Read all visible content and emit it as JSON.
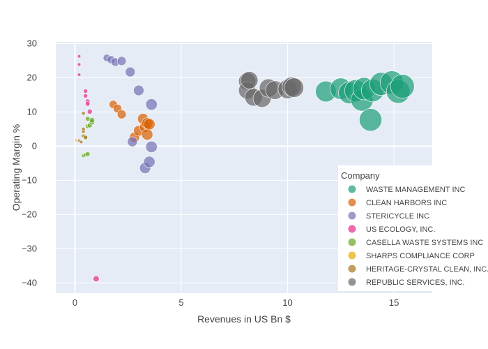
{
  "chart_data": {
    "type": "scatter",
    "title": "",
    "xlabel": "Revenues in US Bn $",
    "ylabel": "Operating Margin %",
    "xlim": [
      -0.9,
      16.8
    ],
    "ylim": [
      -43,
      30.5
    ],
    "xticks": [
      0,
      5,
      10,
      15
    ],
    "yticks": [
      -40,
      -30,
      -20,
      -10,
      0,
      10,
      20,
      30
    ],
    "grid": true,
    "legend_title": "Company",
    "legend_position": "bottom-right",
    "series": [
      {
        "name": "WASTE MANAGEMENT INC",
        "color": "#1b9e77",
        "points": [
          {
            "x": 11.8,
            "y": 16.0,
            "s": 11.8
          },
          {
            "x": 12.5,
            "y": 16.8,
            "s": 12.5
          },
          {
            "x": 12.9,
            "y": 15.6,
            "s": 12.9
          },
          {
            "x": 13.2,
            "y": 16.2,
            "s": 13.2
          },
          {
            "x": 13.5,
            "y": 13.5,
            "s": 13.5
          },
          {
            "x": 13.6,
            "y": 16.8,
            "s": 13.6
          },
          {
            "x": 13.9,
            "y": 7.7,
            "s": 13.9
          },
          {
            "x": 14.0,
            "y": 16.3,
            "s": 14.0
          },
          {
            "x": 14.4,
            "y": 18.2,
            "s": 14.4
          },
          {
            "x": 14.9,
            "y": 18.6,
            "s": 14.9
          },
          {
            "x": 15.2,
            "y": 16.0,
            "s": 15.2
          },
          {
            "x": 15.4,
            "y": 17.5,
            "s": 15.4
          }
        ]
      },
      {
        "name": "CLEAN HARBORS INC",
        "color": "#d95f02",
        "points": [
          {
            "x": 1.8,
            "y": 12.2,
            "s": 1.8
          },
          {
            "x": 2.0,
            "y": 11.0,
            "s": 2.0
          },
          {
            "x": 2.2,
            "y": 9.3,
            "s": 2.2
          },
          {
            "x": 2.8,
            "y": 2.6,
            "s": 2.8
          },
          {
            "x": 3.0,
            "y": 4.5,
            "s": 3.0
          },
          {
            "x": 3.2,
            "y": 8.0,
            "s": 3.2
          },
          {
            "x": 3.3,
            "y": 5.6,
            "s": 3.3
          },
          {
            "x": 3.4,
            "y": 3.4,
            "s": 3.4
          },
          {
            "x": 3.4,
            "y": 6.7,
            "s": 3.4
          },
          {
            "x": 3.5,
            "y": 6.4,
            "s": 3.5
          }
        ]
      },
      {
        "name": "STERICYCLE INC",
        "color": "#7570b3",
        "points": [
          {
            "x": 1.5,
            "y": 25.8,
            "s": 1.5
          },
          {
            "x": 1.7,
            "y": 25.3,
            "s": 1.7
          },
          {
            "x": 1.9,
            "y": 24.6,
            "s": 1.9
          },
          {
            "x": 2.2,
            "y": 24.9,
            "s": 2.2
          },
          {
            "x": 2.6,
            "y": 21.7,
            "s": 2.6
          },
          {
            "x": 2.7,
            "y": 1.3,
            "s": 2.7
          },
          {
            "x": 3.0,
            "y": 16.3,
            "s": 3.0
          },
          {
            "x": 3.3,
            "y": -6.4,
            "s": 3.3
          },
          {
            "x": 3.5,
            "y": -4.6,
            "s": 3.5
          },
          {
            "x": 3.6,
            "y": 12.2,
            "s": 3.6
          },
          {
            "x": 3.6,
            "y": -0.2,
            "s": 3.6
          }
        ]
      },
      {
        "name": "US ECOLOGY, INC.",
        "color": "#e7298a",
        "points": [
          {
            "x": 0.2,
            "y": 26.3,
            "s": 0.2
          },
          {
            "x": 0.2,
            "y": 23.9,
            "s": 0.2
          },
          {
            "x": 0.2,
            "y": 20.9,
            "s": 0.2
          },
          {
            "x": 0.5,
            "y": 16.1,
            "s": 0.5
          },
          {
            "x": 0.5,
            "y": 14.7,
            "s": 0.5
          },
          {
            "x": 0.6,
            "y": 13.1,
            "s": 0.6
          },
          {
            "x": 0.6,
            "y": 12.4,
            "s": 0.6
          },
          {
            "x": 0.7,
            "y": 10.1,
            "s": 0.7
          },
          {
            "x": 1.0,
            "y": -38.8,
            "s": 1.0
          }
        ]
      },
      {
        "name": "CASELLA WASTE SYSTEMS INC",
        "color": "#66a61e",
        "points": [
          {
            "x": 0.4,
            "y": -2.8,
            "s": 0.4
          },
          {
            "x": 0.5,
            "y": -2.5,
            "s": 0.5
          },
          {
            "x": 0.6,
            "y": -2.3,
            "s": 0.6
          },
          {
            "x": 0.5,
            "y": 2.4,
            "s": 0.5
          },
          {
            "x": 0.6,
            "y": 5.8,
            "s": 0.6
          },
          {
            "x": 0.7,
            "y": 6.1,
            "s": 0.7
          },
          {
            "x": 0.6,
            "y": 8.0,
            "s": 0.6
          },
          {
            "x": 0.8,
            "y": 7.0,
            "s": 0.8
          },
          {
            "x": 0.8,
            "y": 7.6,
            "s": 0.8
          }
        ]
      },
      {
        "name": "SHARPS COMPLIANCE CORP",
        "color": "#e6ab02",
        "points": [
          {
            "x": 0.05,
            "y": 1.5,
            "s": 0.05
          },
          {
            "x": 0.05,
            "y": 2.0,
            "s": 0.05
          }
        ]
      },
      {
        "name": "HERITAGE-CRYSTAL CLEAN, INC.",
        "color": "#a6761d",
        "points": [
          {
            "x": 0.2,
            "y": 1.6,
            "s": 0.2
          },
          {
            "x": 0.3,
            "y": 1.2,
            "s": 0.3
          },
          {
            "x": 0.4,
            "y": 3.0,
            "s": 0.4
          },
          {
            "x": 0.4,
            "y": 4.3,
            "s": 0.4
          },
          {
            "x": 0.4,
            "y": 5.0,
            "s": 0.4
          },
          {
            "x": 0.4,
            "y": 9.6,
            "s": 0.4
          },
          {
            "x": 0.5,
            "y": 2.6,
            "s": 0.5
          }
        ]
      },
      {
        "name": "REPUBLIC SERVICES, INC.",
        "color": "#666666",
        "points": [
          {
            "x": 8.1,
            "y": 19.0,
            "s": 8.1
          },
          {
            "x": 8.1,
            "y": 16.3,
            "s": 8.1
          },
          {
            "x": 8.2,
            "y": 19.3,
            "s": 8.2
          },
          {
            "x": 8.4,
            "y": 14.3,
            "s": 8.4
          },
          {
            "x": 8.8,
            "y": 14.0,
            "s": 8.8
          },
          {
            "x": 9.1,
            "y": 17.0,
            "s": 9.1
          },
          {
            "x": 9.4,
            "y": 16.4,
            "s": 9.4
          },
          {
            "x": 10.0,
            "y": 16.7,
            "s": 10.0
          },
          {
            "x": 10.2,
            "y": 17.4,
            "s": 10.2
          },
          {
            "x": 10.3,
            "y": 17.1,
            "s": 10.3
          }
        ]
      }
    ]
  }
}
